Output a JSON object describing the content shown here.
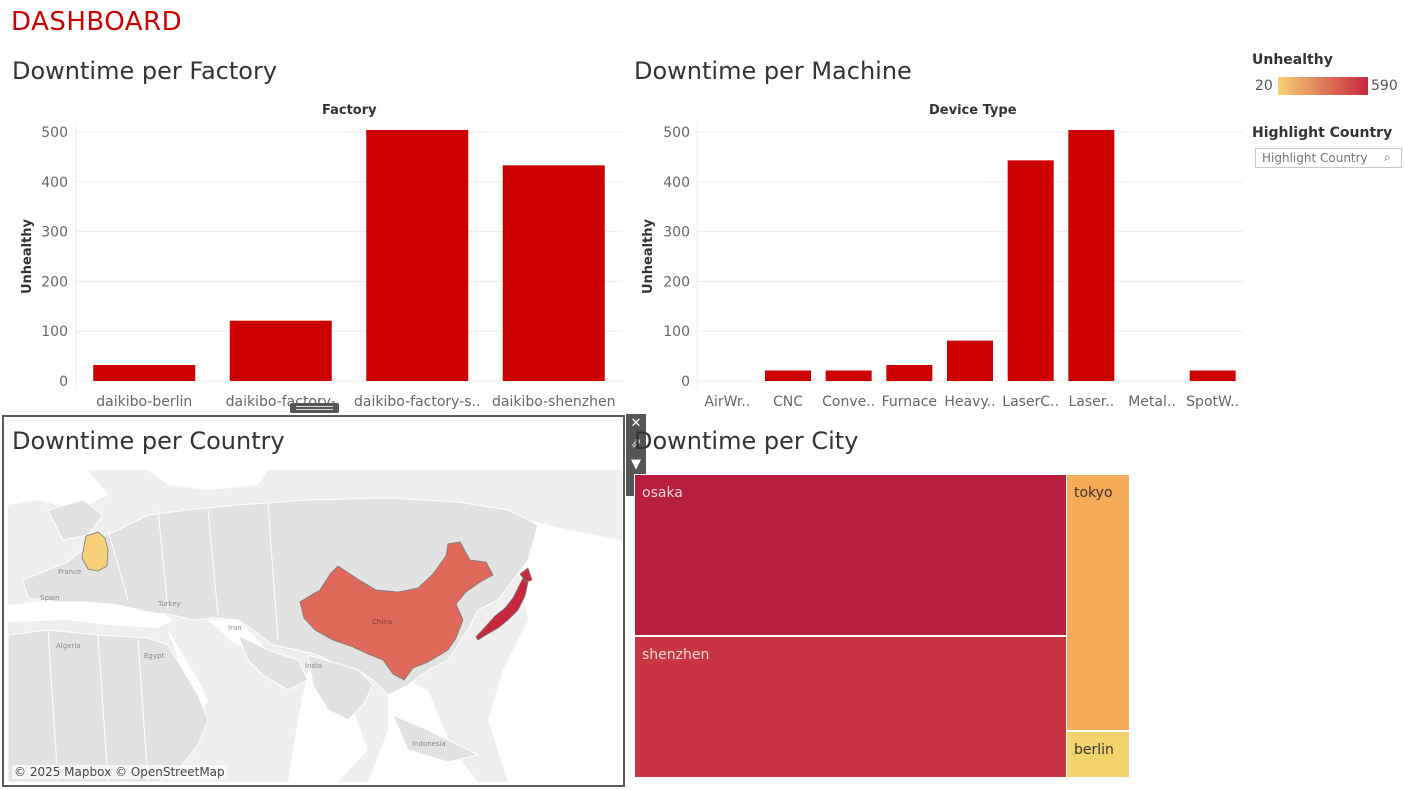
{
  "dashboard": {
    "title": "DASHBOARD"
  },
  "factory_panel": {
    "title": "Downtime per Factory",
    "axis_title": "Factory",
    "ylabel": "Unhealthy"
  },
  "machine_panel": {
    "title": "Downtime per Machine",
    "axis_title": "Device Type",
    "ylabel": "Unhealthy"
  },
  "country_panel": {
    "title": "Downtime per Country",
    "copyright": "© 2025 Mapbox © OpenStreetMap",
    "map_labels": [
      "France",
      "Spain",
      "Turkey",
      "Iran",
      "Algeria",
      "Egypt",
      "India",
      "China",
      "Indonesia"
    ],
    "highlighted_countries": [
      {
        "name": "Germany",
        "color": "#f7cf78"
      },
      {
        "name": "China",
        "color": "#e06a5a"
      },
      {
        "name": "Japan",
        "color": "#c8283d"
      }
    ]
  },
  "city_panel": {
    "title": "Downtime per City",
    "cells": [
      {
        "label": "osaka",
        "color": "#b81e3e",
        "text_color": "#f3d7dc"
      },
      {
        "label": "shenzhen",
        "color": "#c93541",
        "text_color": "#f3d7dc"
      },
      {
        "label": "tokyo",
        "color": "#f6ab57",
        "text_color": "#333333"
      },
      {
        "label": "berlin",
        "color": "#f3d36c",
        "text_color": "#333333"
      }
    ]
  },
  "legend": {
    "title": "Unhealthy",
    "min": "20",
    "max": "590",
    "gradient_start": "#f6cf76",
    "gradient_end": "#c8283d"
  },
  "highlight": {
    "title": "Highlight Country",
    "placeholder": "Highlight Country",
    "search_icon": "search-icon"
  },
  "toolbar": {
    "icons": [
      "close-icon",
      "popout-icon",
      "filter-icon",
      "more-options-icon"
    ]
  },
  "chart_data": [
    {
      "type": "bar",
      "title": "Downtime per Factory",
      "xlabel": "Factory",
      "ylabel": "Unhealthy",
      "categories": [
        "daikibo-berlin",
        "daikibo-factory-",
        "daikibo-factory-s..",
        "daikibo-shenzhen"
      ],
      "values": [
        20,
        109,
        492,
        421
      ],
      "ylim": [
        0,
        500
      ],
      "yticks": [
        0,
        100,
        200,
        300,
        400,
        500
      ],
      "grid": true,
      "bar_color": "#cc0000"
    },
    {
      "type": "bar",
      "title": "Downtime per Machine",
      "xlabel": "Device Type",
      "ylabel": "Unhealthy",
      "categories": [
        "AirWr..",
        "CNC",
        "Conve..",
        "Furnace",
        "Heavy..",
        "LaserC..",
        "Laser..",
        "Metal..",
        "SpotW.."
      ],
      "values": [
        0,
        9,
        9,
        20,
        69,
        431,
        492,
        0,
        9
      ],
      "ylim": [
        0,
        500
      ],
      "yticks": [
        0,
        100,
        200,
        300,
        400,
        500
      ],
      "grid": true,
      "bar_color": "#cc0000"
    }
  ]
}
